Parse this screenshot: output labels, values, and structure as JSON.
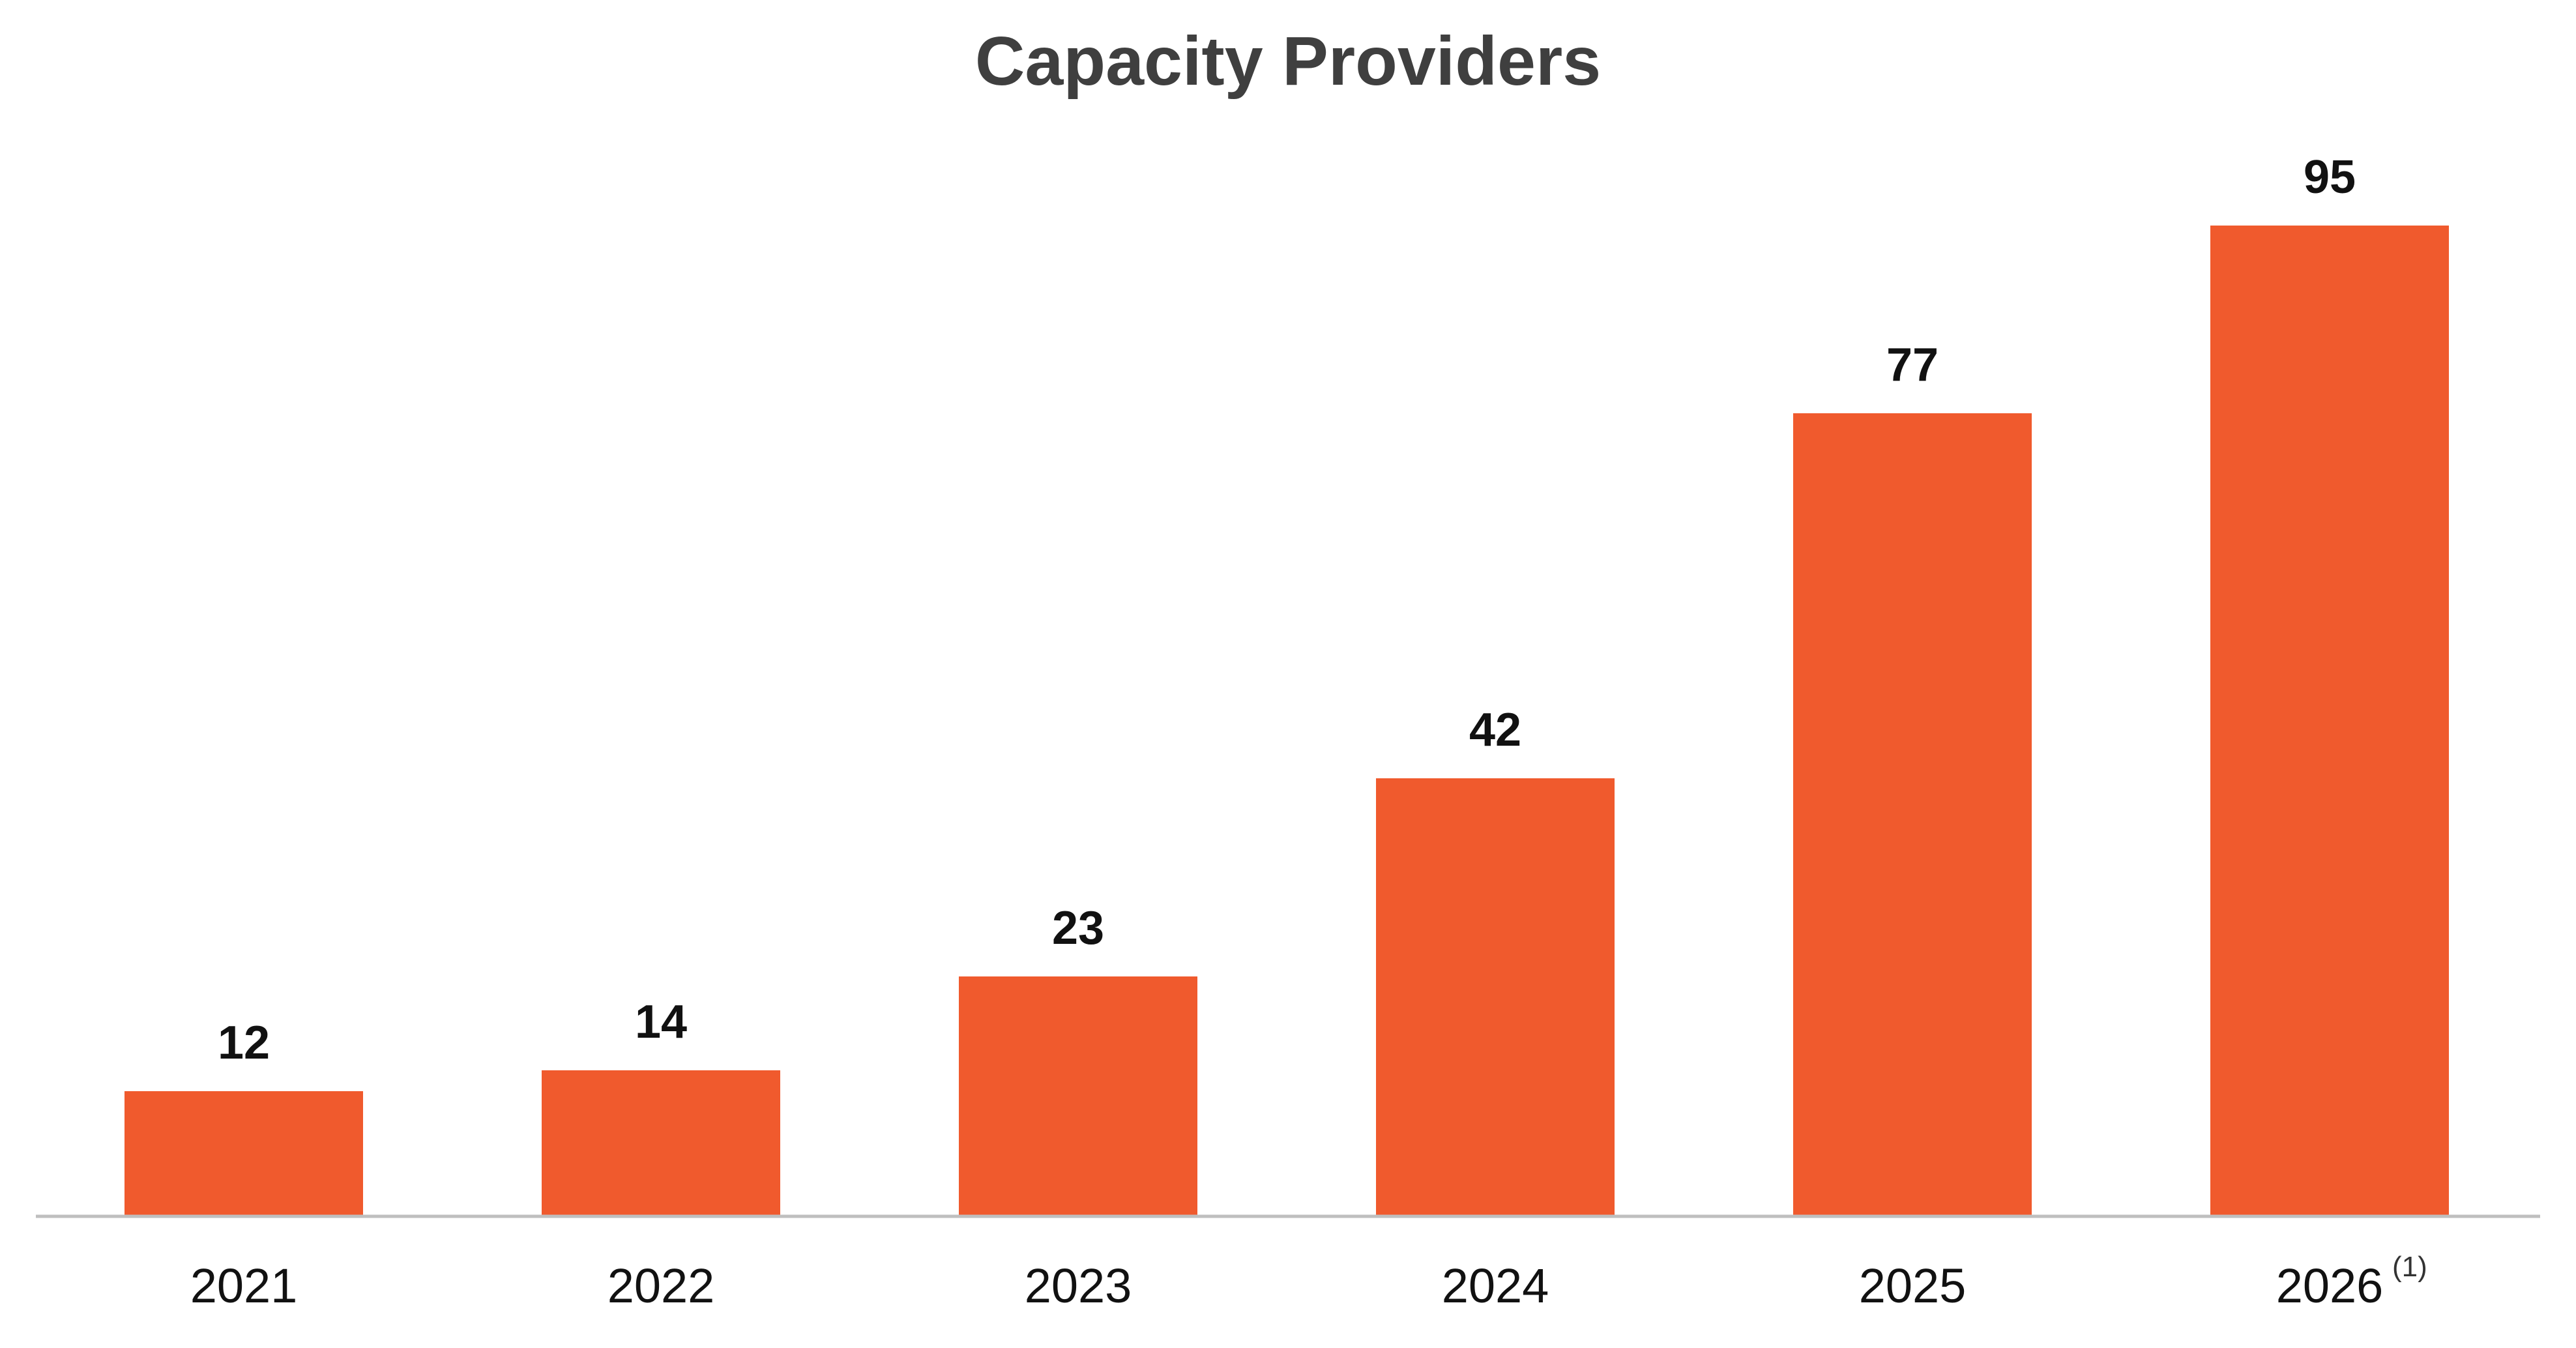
{
  "chart_data": {
    "type": "bar",
    "title": "Capacity Providers",
    "categories": [
      "2021",
      "2022",
      "2023",
      "2024",
      "2025",
      "2026"
    ],
    "values": [
      12,
      14,
      23,
      42,
      77,
      95
    ],
    "category_footnotes": [
      "",
      "",
      "",
      "",
      "",
      "(1)"
    ],
    "xlabel": "",
    "ylabel": "",
    "ylim": [
      0,
      95
    ],
    "grid": false,
    "legend": "none",
    "data_labels": true,
    "colors": {
      "bar": "#F05A2D",
      "axis": "#BFBFBF",
      "title": "#3F3F3F",
      "text": "#111111"
    }
  }
}
